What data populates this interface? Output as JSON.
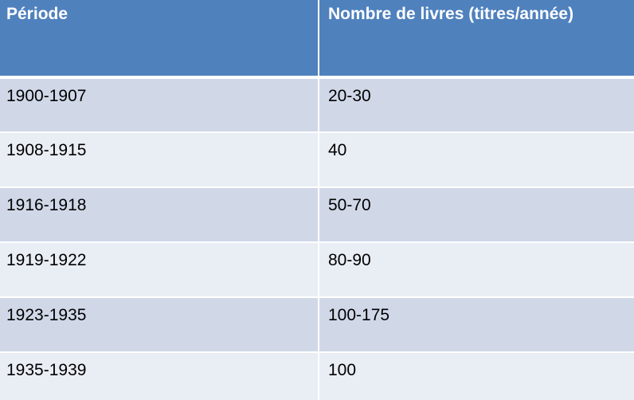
{
  "table": {
    "headers": [
      "Période",
      "Nombre de livres (titres/année)"
    ],
    "rows": [
      [
        "1900-1907",
        "20-30"
      ],
      [
        "1908-1915",
        "40"
      ],
      [
        "1916-1918",
        "50-70"
      ],
      [
        "1919-1922",
        "80-90"
      ],
      [
        "1923-1935",
        "100-175"
      ],
      [
        "1935-1939",
        "100"
      ]
    ]
  }
}
